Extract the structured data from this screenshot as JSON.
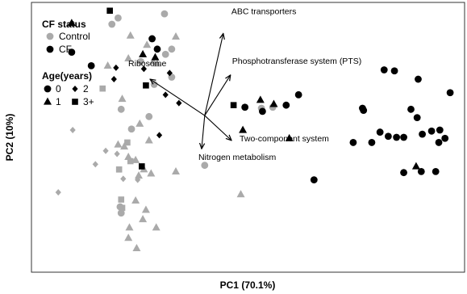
{
  "chart_data": {
    "type": "scatter",
    "title": "",
    "xlabel": "PC1 (70.1%)",
    "ylabel": "PC2 (10%)",
    "grid": false,
    "xlim": [
      -1.0,
      3.2
    ],
    "ylim": [
      -1.55,
      1.05
    ],
    "colors": {
      "Control": "#aaaaaa",
      "CF": "#000000"
    },
    "legend": {
      "placement": "top-left",
      "status_title": "CF status",
      "status": [
        {
          "label": "Control",
          "group": "Control"
        },
        {
          "label": "CF",
          "group": "CF"
        }
      ],
      "age_title": "Age(years)",
      "ages": [
        {
          "label": "0",
          "shape": "circle"
        },
        {
          "label": "2",
          "shape": "diamond"
        },
        {
          "label": "1",
          "shape": "triangle"
        },
        {
          "label": "3+",
          "shape": "square"
        }
      ]
    },
    "biplot": {
      "origin": [
        0.68,
        -0.04
      ],
      "arrows": [
        {
          "label": "ABC transporters",
          "x": 0.86,
          "y": 0.75
        },
        {
          "label": "Phosphotransferase system (PTS)",
          "x": 0.93,
          "y": 0.35
        },
        {
          "label": "Ribosome",
          "x": 0.15,
          "y": 0.31
        },
        {
          "label": "Two-component system",
          "x": 0.94,
          "y": -0.28
        },
        {
          "label": "Nitrogen metabolism",
          "x": 0.65,
          "y": -0.36
        }
      ]
    },
    "points": [
      {
        "x": 0.29,
        "y": 0.94,
        "group": "Control",
        "age": "0"
      },
      {
        "x": -0.16,
        "y": 0.9,
        "group": "Control",
        "age": "0"
      },
      {
        "x": -0.22,
        "y": 0.84,
        "group": "Control",
        "age": "0"
      },
      {
        "x": 0.36,
        "y": 0.6,
        "group": "Control",
        "age": "0"
      },
      {
        "x": 0.3,
        "y": 0.55,
        "group": "Control",
        "age": "0"
      },
      {
        "x": 0.06,
        "y": 0.48,
        "group": "Control",
        "age": "0"
      },
      {
        "x": 0.36,
        "y": 0.33,
        "group": "Control",
        "age": "0"
      },
      {
        "x": 0.19,
        "y": 0.26,
        "group": "Control",
        "age": "0"
      },
      {
        "x": -0.13,
        "y": 0.02,
        "group": "Control",
        "age": "0"
      },
      {
        "x": 0.14,
        "y": -0.05,
        "group": "Control",
        "age": "0"
      },
      {
        "x": -0.03,
        "y": -0.17,
        "group": "Control",
        "age": "0"
      },
      {
        "x": 0.68,
        "y": -0.52,
        "group": "Control",
        "age": "0"
      },
      {
        "x": 1.23,
        "y": 0.03,
        "group": "Control",
        "age": "0"
      },
      {
        "x": 1.34,
        "y": 0.04,
        "group": "Control",
        "age": "0"
      },
      {
        "x": -0.14,
        "y": -0.92,
        "group": "Control",
        "age": "0"
      },
      {
        "x": -0.13,
        "y": -0.98,
        "group": "Control",
        "age": "0"
      },
      {
        "x": 0.12,
        "y": 0.64,
        "group": "Control",
        "age": "1"
      },
      {
        "x": -0.04,
        "y": 0.73,
        "group": "Control",
        "age": "1"
      },
      {
        "x": 0.4,
        "y": 0.72,
        "group": "Control",
        "age": "1"
      },
      {
        "x": -0.06,
        "y": 0.51,
        "group": "Control",
        "age": "1"
      },
      {
        "x": 0.18,
        "y": 0.48,
        "group": "Control",
        "age": "1"
      },
      {
        "x": 0.22,
        "y": 0.46,
        "group": "Control",
        "age": "1"
      },
      {
        "x": -0.26,
        "y": 0.44,
        "group": "Control",
        "age": "1"
      },
      {
        "x": -0.12,
        "y": 0.12,
        "group": "Control",
        "age": "1"
      },
      {
        "x": 0.05,
        "y": -0.12,
        "group": "Control",
        "age": "1"
      },
      {
        "x": 0.14,
        "y": -0.28,
        "group": "Control",
        "age": "1"
      },
      {
        "x": -0.16,
        "y": -0.32,
        "group": "Control",
        "age": "1"
      },
      {
        "x": -0.1,
        "y": -0.34,
        "group": "Control",
        "age": "1"
      },
      {
        "x": -0.06,
        "y": -0.44,
        "group": "Control",
        "age": "1"
      },
      {
        "x": 0.01,
        "y": -0.47,
        "group": "Control",
        "age": "1"
      },
      {
        "x": 0.09,
        "y": -0.56,
        "group": "Control",
        "age": "1"
      },
      {
        "x": 0.04,
        "y": -0.62,
        "group": "Control",
        "age": "1"
      },
      {
        "x": 0.16,
        "y": -0.6,
        "group": "Control",
        "age": "1"
      },
      {
        "x": 0.4,
        "y": -0.58,
        "group": "Control",
        "age": "1"
      },
      {
        "x": 0.01,
        "y": -0.86,
        "group": "Control",
        "age": "1"
      },
      {
        "x": 0.11,
        "y": -0.95,
        "group": "Control",
        "age": "1"
      },
      {
        "x": 0.08,
        "y": -1.04,
        "group": "Control",
        "age": "1"
      },
      {
        "x": -0.05,
        "y": -1.12,
        "group": "Control",
        "age": "1"
      },
      {
        "x": 0.21,
        "y": -1.12,
        "group": "Control",
        "age": "1"
      },
      {
        "x": -0.06,
        "y": -1.22,
        "group": "Control",
        "age": "1"
      },
      {
        "x": 0.02,
        "y": -1.32,
        "group": "Control",
        "age": "1"
      },
      {
        "x": 1.03,
        "y": -0.8,
        "group": "Control",
        "age": "1"
      },
      {
        "x": -0.6,
        "y": -0.18,
        "group": "Control",
        "age": "2"
      },
      {
        "x": -0.28,
        "y": -0.38,
        "group": "Control",
        "age": "2"
      },
      {
        "x": -0.38,
        "y": -0.51,
        "group": "Control",
        "age": "2"
      },
      {
        "x": -0.17,
        "y": -0.41,
        "group": "Control",
        "age": "2"
      },
      {
        "x": 0.03,
        "y": -0.66,
        "group": "Control",
        "age": "2"
      },
      {
        "x": -0.11,
        "y": -0.65,
        "group": "Control",
        "age": "2"
      },
      {
        "x": -0.74,
        "y": -0.78,
        "group": "Control",
        "age": "2"
      },
      {
        "x": -0.07,
        "y": -0.3,
        "group": "Control",
        "age": "3+"
      },
      {
        "x": -0.04,
        "y": -0.48,
        "group": "Control",
        "age": "3+"
      },
      {
        "x": -0.15,
        "y": -0.56,
        "group": "Control",
        "age": "3+"
      },
      {
        "x": -0.13,
        "y": -0.85,
        "group": "Control",
        "age": "3+"
      },
      {
        "x": -0.12,
        "y": -0.93,
        "group": "Control",
        "age": "3+"
      },
      {
        "x": -0.31,
        "y": 0.22,
        "group": "Control",
        "age": "3+"
      },
      {
        "x": 0.17,
        "y": 0.7,
        "group": "CF",
        "age": "0"
      },
      {
        "x": 0.22,
        "y": 0.6,
        "group": "CF",
        "age": "0"
      },
      {
        "x": -0.61,
        "y": 0.57,
        "group": "CF",
        "age": "0"
      },
      {
        "x": -0.42,
        "y": 0.44,
        "group": "CF",
        "age": "0"
      },
      {
        "x": 1.07,
        "y": 0.04,
        "group": "CF",
        "age": "0"
      },
      {
        "x": 1.24,
        "y": 0.0,
        "group": "CF",
        "age": "0"
      },
      {
        "x": 1.59,
        "y": 0.16,
        "group": "CF",
        "age": "0"
      },
      {
        "x": 1.47,
        "y": 0.06,
        "group": "CF",
        "age": "0"
      },
      {
        "x": 2.42,
        "y": 0.4,
        "group": "CF",
        "age": "0"
      },
      {
        "x": 2.52,
        "y": 0.39,
        "group": "CF",
        "age": "0"
      },
      {
        "x": 2.75,
        "y": 0.31,
        "group": "CF",
        "age": "0"
      },
      {
        "x": 3.06,
        "y": 0.18,
        "group": "CF",
        "age": "0"
      },
      {
        "x": 2.21,
        "y": 0.03,
        "group": "CF",
        "age": "0"
      },
      {
        "x": 2.22,
        "y": 0.01,
        "group": "CF",
        "age": "0"
      },
      {
        "x": 2.68,
        "y": 0.02,
        "group": "CF",
        "age": "0"
      },
      {
        "x": 2.74,
        "y": -0.06,
        "group": "CF",
        "age": "0"
      },
      {
        "x": 2.38,
        "y": -0.2,
        "group": "CF",
        "age": "0"
      },
      {
        "x": 2.46,
        "y": -0.24,
        "group": "CF",
        "age": "0"
      },
      {
        "x": 2.54,
        "y": -0.25,
        "group": "CF",
        "age": "0"
      },
      {
        "x": 2.61,
        "y": -0.25,
        "group": "CF",
        "age": "0"
      },
      {
        "x": 2.79,
        "y": -0.22,
        "group": "CF",
        "age": "0"
      },
      {
        "x": 2.88,
        "y": -0.19,
        "group": "CF",
        "age": "0"
      },
      {
        "x": 2.96,
        "y": -0.18,
        "group": "CF",
        "age": "0"
      },
      {
        "x": 2.95,
        "y": -0.3,
        "group": "CF",
        "age": "0"
      },
      {
        "x": 3.01,
        "y": -0.26,
        "group": "CF",
        "age": "0"
      },
      {
        "x": 2.3,
        "y": -0.3,
        "group": "CF",
        "age": "0"
      },
      {
        "x": 2.12,
        "y": -0.3,
        "group": "CF",
        "age": "0"
      },
      {
        "x": 2.78,
        "y": -0.58,
        "group": "CF",
        "age": "0"
      },
      {
        "x": 2.92,
        "y": -0.58,
        "group": "CF",
        "age": "0"
      },
      {
        "x": 2.61,
        "y": -0.59,
        "group": "CF",
        "age": "0"
      },
      {
        "x": 1.74,
        "y": -0.66,
        "group": "CF",
        "age": "0"
      },
      {
        "x": -0.61,
        "y": 0.85,
        "group": "CF",
        "age": "1"
      },
      {
        "x": 0.08,
        "y": 0.55,
        "group": "CF",
        "age": "1"
      },
      {
        "x": 0.2,
        "y": 0.52,
        "group": "CF",
        "age": "1"
      },
      {
        "x": 1.22,
        "y": 0.11,
        "group": "CF",
        "age": "1"
      },
      {
        "x": 1.35,
        "y": 0.07,
        "group": "CF",
        "age": "1"
      },
      {
        "x": 1.05,
        "y": -0.18,
        "group": "CF",
        "age": "1"
      },
      {
        "x": 1.5,
        "y": -0.26,
        "group": "CF",
        "age": "1"
      },
      {
        "x": 2.73,
        "y": -0.53,
        "group": "CF",
        "age": "1"
      },
      {
        "x": -0.18,
        "y": 0.42,
        "group": "CF",
        "age": "2"
      },
      {
        "x": 0.09,
        "y": 0.41,
        "group": "CF",
        "age": "2"
      },
      {
        "x": 0.34,
        "y": 0.37,
        "group": "CF",
        "age": "2"
      },
      {
        "x": -0.2,
        "y": 0.31,
        "group": "CF",
        "age": "2"
      },
      {
        "x": 0.3,
        "y": 0.16,
        "group": "CF",
        "age": "2"
      },
      {
        "x": 0.43,
        "y": 0.08,
        "group": "CF",
        "age": "2"
      },
      {
        "x": 0.24,
        "y": -0.23,
        "group": "CF",
        "age": "2"
      },
      {
        "x": -0.24,
        "y": 0.97,
        "group": "CF",
        "age": "3+"
      },
      {
        "x": 0.11,
        "y": 0.25,
        "group": "CF",
        "age": "3+"
      },
      {
        "x": 0.96,
        "y": 0.06,
        "group": "CF",
        "age": "3+"
      },
      {
        "x": 0.07,
        "y": -0.53,
        "group": "CF",
        "age": "3+"
      }
    ]
  }
}
